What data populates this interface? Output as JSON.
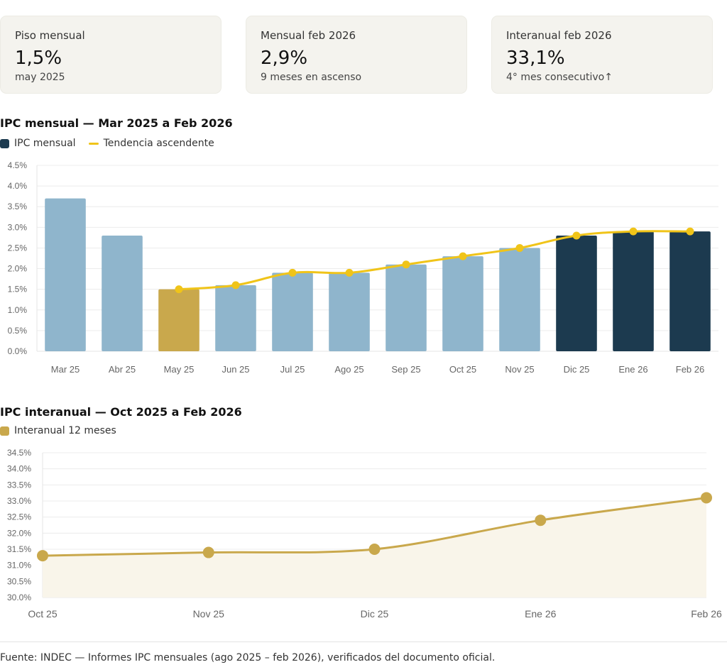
{
  "colors": {
    "light_bar": "#8fb5cc",
    "gold": "#c9a84c",
    "dark_bar": "#1c3a4f",
    "trend": "#f0c419",
    "area_fill": "#f9f5ea",
    "card_bg": "#f4f3ee"
  },
  "cards": [
    {
      "label": "Piso mensual",
      "value": "1,5%",
      "sub": "may 2025"
    },
    {
      "label": "Mensual feb 2026",
      "value": "2,9%",
      "sub": "9 meses en ascenso"
    },
    {
      "label": "Interanual feb 2026",
      "value": "33,1%",
      "sub": "4° mes consecutivo↑"
    }
  ],
  "chart_data": [
    {
      "type": "bar",
      "title": "IPC mensual — Mar 2025 a Feb 2026",
      "legend": {
        "bars": "IPC mensual",
        "line": "Tendencia ascendente"
      },
      "categories": [
        "Mar 25",
        "Abr 25",
        "May 25",
        "Jun 25",
        "Jul 25",
        "Ago 25",
        "Sep 25",
        "Oct 25",
        "Nov 25",
        "Dic 25",
        "Ene 26",
        "Feb 26"
      ],
      "values": [
        3.7,
        2.8,
        1.5,
        1.6,
        1.9,
        1.9,
        2.1,
        2.3,
        2.5,
        2.8,
        2.9,
        2.9
      ],
      "bar_styles": [
        "light",
        "light",
        "gold",
        "light",
        "light",
        "light",
        "light",
        "light",
        "light",
        "dark",
        "dark",
        "dark"
      ],
      "trend": {
        "name": "Tendencia ascendente",
        "start_index": 2,
        "values": [
          1.5,
          1.6,
          1.9,
          1.9,
          2.1,
          2.3,
          2.5,
          2.8,
          2.9,
          2.9
        ]
      },
      "ylim": [
        0,
        4.5
      ],
      "yticks": [
        "0.0%",
        "0.5%",
        "1.0%",
        "1.5%",
        "2.0%",
        "2.5%",
        "3.0%",
        "3.5%",
        "4.0%",
        "4.5%"
      ],
      "ytick_values": [
        0,
        0.5,
        1.0,
        1.5,
        2.0,
        2.5,
        3.0,
        3.5,
        4.0,
        4.5
      ],
      "grid": true
    },
    {
      "type": "area",
      "title": "IPC interanual — Oct 2025 a Feb 2026",
      "legend": {
        "series": "Interanual 12 meses"
      },
      "categories": [
        "Oct 25",
        "Nov 25",
        "Dic 25",
        "Ene 26",
        "Feb 26"
      ],
      "values": [
        31.3,
        31.4,
        31.5,
        32.4,
        33.1
      ],
      "ylim": [
        30.0,
        34.5
      ],
      "yticks": [
        "30.0%",
        "30.5%",
        "31.0%",
        "31.5%",
        "32.0%",
        "32.5%",
        "33.0%",
        "33.5%",
        "34.0%",
        "34.5%"
      ],
      "ytick_values": [
        30.0,
        30.5,
        31.0,
        31.5,
        32.0,
        32.5,
        33.0,
        33.5,
        34.0,
        34.5
      ],
      "grid": true
    }
  ],
  "footer": "Fuente: INDEC — Informes IPC mensuales (ago 2025 – feb 2026), verificados del documento oficial."
}
